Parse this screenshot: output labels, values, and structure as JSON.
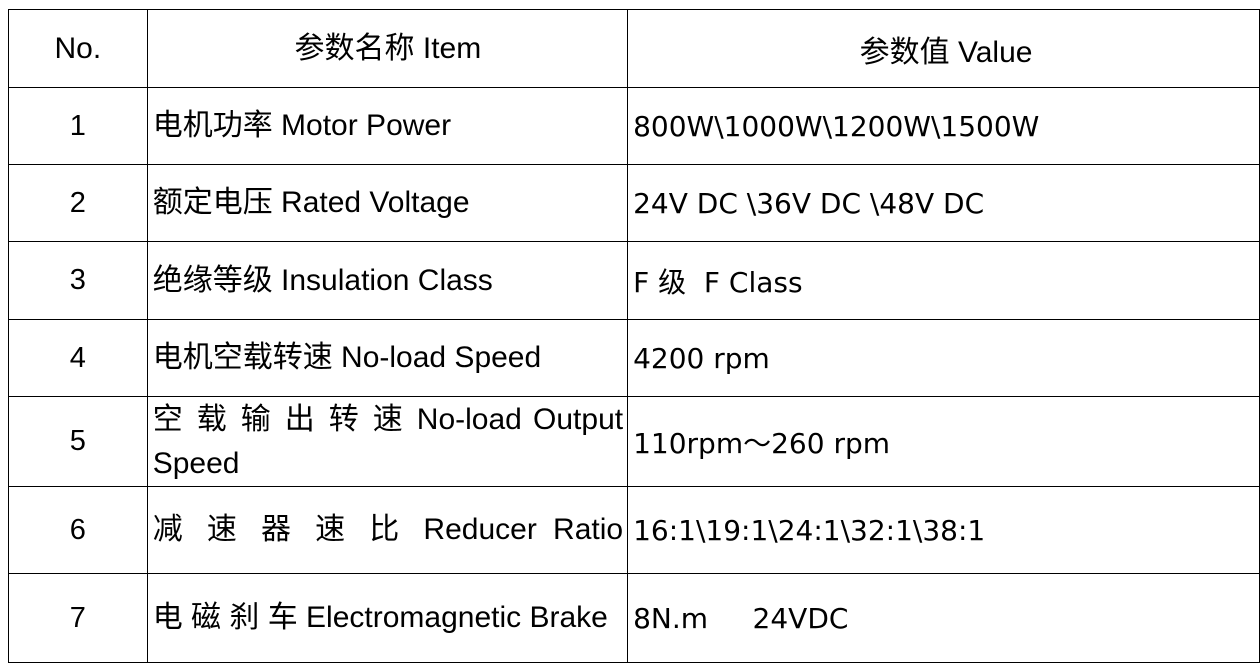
{
  "headers": {
    "no": "No.",
    "item": "参数名称 Item",
    "value": "参数值 Value"
  },
  "rows": [
    {
      "no": "1",
      "item": "电机功率 Motor Power",
      "value": "800W\\1000W\\1200W\\1500W"
    },
    {
      "no": "2",
      "item": "额定电压 Rated Voltage",
      "value": "24V DC \\36V DC \\48V DC"
    },
    {
      "no": "3",
      "item": "绝缘等级 Insulation Class",
      "value": "F 级  F Class"
    },
    {
      "no": "4",
      "item": "电机空载转速 No-load Speed",
      "value": "4200 rpm"
    },
    {
      "no": "5",
      "item": "空 载 输 出 转 速 No-load Output Speed",
      "value": "110rpm～260 rpm"
    },
    {
      "no": "6",
      "item": "减 速 器 速 比 Reducer Ratio",
      "value": "16:1\\19:1\\24:1\\32:1\\38:1"
    },
    {
      "no": "7",
      "item": "电 磁 刹 车 Electromagnetic Brake",
      "value": "8N.m     24VDC"
    }
  ]
}
